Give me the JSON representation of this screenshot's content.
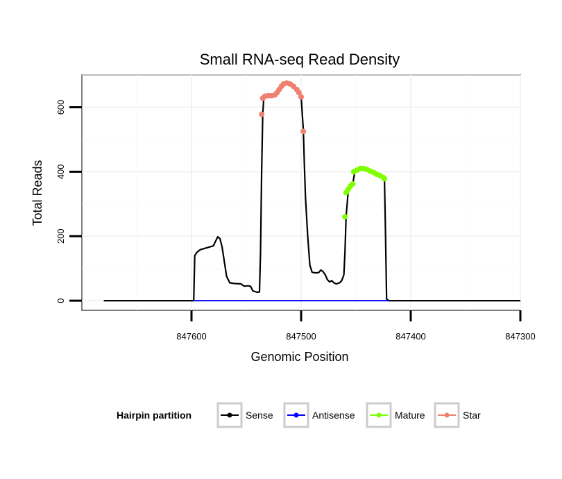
{
  "chart_data": {
    "type": "line",
    "title": "Small RNA-seq Read Density",
    "xlabel": "Genomic Position",
    "ylabel": "Total Reads",
    "xlim": [
      847700,
      847300
    ],
    "ylim": [
      -30,
      700
    ],
    "x_ticks": [
      847600,
      847500,
      847400,
      847300
    ],
    "y_ticks": [
      0,
      200,
      400,
      600
    ],
    "grid": true,
    "legend": {
      "title": "Hairpin partition",
      "position": "bottom",
      "entries": [
        {
          "label": "Sense",
          "color": "#000000"
        },
        {
          "label": "Antisense",
          "color": "#0000ff"
        },
        {
          "label": "Mature",
          "color": "#7fff00"
        },
        {
          "label": "Star",
          "color": "#f08070"
        }
      ]
    },
    "series": [
      {
        "name": "Sense",
        "color": "#000000",
        "points": [
          [
            847680,
            0
          ],
          [
            847640,
            0
          ],
          [
            847600,
            0
          ],
          [
            847598,
            0
          ],
          [
            847597,
            140
          ],
          [
            847595,
            150
          ],
          [
            847592,
            158
          ],
          [
            847588,
            162
          ],
          [
            847585,
            165
          ],
          [
            847582,
            168
          ],
          [
            847580,
            170
          ],
          [
            847578,
            185
          ],
          [
            847576,
            198
          ],
          [
            847574,
            192
          ],
          [
            847572,
            165
          ],
          [
            847570,
            120
          ],
          [
            847568,
            75
          ],
          [
            847565,
            55
          ],
          [
            847560,
            53
          ],
          [
            847555,
            52
          ],
          [
            847552,
            45
          ],
          [
            847548,
            46
          ],
          [
            847546,
            44
          ],
          [
            847544,
            30
          ],
          [
            847540,
            26
          ],
          [
            847538,
            27
          ],
          [
            847537,
            150
          ],
          [
            847536,
            400
          ],
          [
            847535,
            580
          ],
          [
            847534,
            630
          ],
          [
            847532,
            635
          ],
          [
            847528,
            638
          ],
          [
            847524,
            640
          ],
          [
            847521,
            650
          ],
          [
            847518,
            660
          ],
          [
            847515,
            672
          ],
          [
            847512,
            675
          ],
          [
            847509,
            672
          ],
          [
            847505,
            660
          ],
          [
            847502,
            645
          ],
          [
            847500,
            635
          ],
          [
            847499,
            580
          ],
          [
            847498,
            530
          ],
          [
            847497,
            420
          ],
          [
            847496,
            320
          ],
          [
            847494,
            200
          ],
          [
            847492,
            110
          ],
          [
            847490,
            88
          ],
          [
            847487,
            86
          ],
          [
            847484,
            87
          ],
          [
            847482,
            95
          ],
          [
            847480,
            90
          ],
          [
            847478,
            80
          ],
          [
            847476,
            65
          ],
          [
            847474,
            58
          ],
          [
            847472,
            62
          ],
          [
            847470,
            55
          ],
          [
            847468,
            52
          ],
          [
            847465,
            55
          ],
          [
            847463,
            62
          ],
          [
            847461,
            80
          ],
          [
            847460,
            150
          ],
          [
            847459,
            260
          ],
          [
            847457,
            340
          ],
          [
            847455,
            350
          ],
          [
            847453,
            360
          ],
          [
            847451,
            400
          ],
          [
            847448,
            405
          ],
          [
            847445,
            410
          ],
          [
            847442,
            410
          ],
          [
            847438,
            405
          ],
          [
            847434,
            398
          ],
          [
            847430,
            390
          ],
          [
            847426,
            385
          ],
          [
            847424,
            380
          ],
          [
            847423,
            200
          ],
          [
            847422,
            5
          ],
          [
            847420,
            0
          ],
          [
            847400,
            0
          ],
          [
            847350,
            0
          ],
          [
            847300,
            0
          ]
        ]
      },
      {
        "name": "Antisense",
        "color": "#0000ff",
        "points": [
          [
            847598,
            0
          ],
          [
            847420,
            0
          ]
        ]
      },
      {
        "name": "Mature",
        "color": "#7fff00",
        "points": [
          [
            847460,
            260
          ],
          [
            847459,
            335
          ],
          [
            847457,
            345
          ],
          [
            847455,
            355
          ],
          [
            847453,
            362
          ],
          [
            847452,
            400
          ],
          [
            847449,
            405
          ],
          [
            847446,
            410
          ],
          [
            847443,
            410
          ],
          [
            847440,
            407
          ],
          [
            847437,
            402
          ],
          [
            847434,
            398
          ],
          [
            847431,
            392
          ],
          [
            847428,
            388
          ],
          [
            847425,
            382
          ],
          [
            847424,
            378
          ]
        ]
      },
      {
        "name": "Star",
        "color": "#f08070",
        "points": [
          [
            847536,
            578
          ],
          [
            847535,
            628
          ],
          [
            847533,
            634
          ],
          [
            847530,
            636
          ],
          [
            847527,
            636
          ],
          [
            847524,
            638
          ],
          [
            847522,
            645
          ],
          [
            847520,
            655
          ],
          [
            847518,
            665
          ],
          [
            847516,
            672
          ],
          [
            847513,
            675
          ],
          [
            847510,
            672
          ],
          [
            847507,
            665
          ],
          [
            847504,
            655
          ],
          [
            847502,
            645
          ],
          [
            847500,
            632
          ],
          [
            847498,
            525
          ]
        ]
      }
    ]
  }
}
